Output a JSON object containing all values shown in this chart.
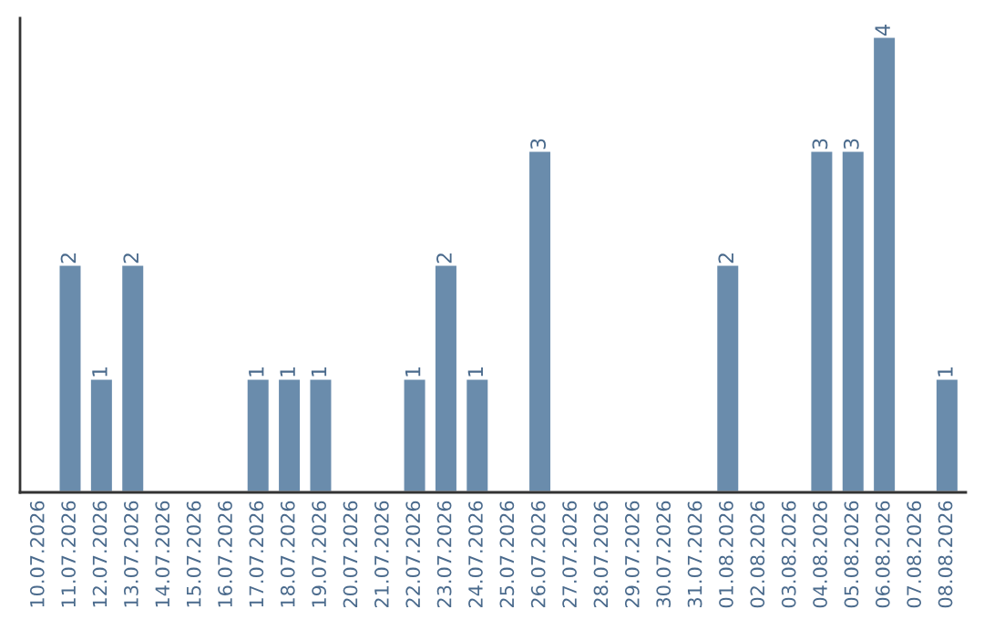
{
  "chart_data": {
    "type": "bar",
    "categories": [
      "10.07.2026",
      "11.07.2026",
      "12.07.2026",
      "13.07.2026",
      "14.07.2026",
      "15.07.2026",
      "16.07.2026",
      "17.07.2026",
      "18.07.2026",
      "19.07.2026",
      "20.07.2026",
      "21.07.2026",
      "22.07.2026",
      "23.07.2026",
      "24.07.2026",
      "25.07.2026",
      "26.07.2026",
      "27.07.2026",
      "28.07.2026",
      "29.07.2026",
      "30.07.2026",
      "31.07.2026",
      "01.08.2026",
      "02.08.2026",
      "03.08.2026",
      "04.08.2026",
      "05.08.2026",
      "06.08.2026",
      "07.08.2026",
      "08.08.2026"
    ],
    "values": [
      0,
      2,
      1,
      2,
      0,
      0,
      0,
      1,
      1,
      1,
      0,
      0,
      1,
      2,
      1,
      0,
      3,
      0,
      0,
      0,
      0,
      0,
      2,
      0,
      0,
      3,
      3,
      4,
      0,
      1
    ],
    "value_labels": [
      null,
      "2",
      "1",
      "2",
      null,
      null,
      null,
      "1",
      "1",
      "1",
      null,
      null,
      "1",
      "2",
      "1",
      null,
      "3",
      null,
      null,
      null,
      null,
      null,
      "2",
      null,
      null,
      "3",
      "3",
      "4",
      null,
      "1"
    ],
    "color": "#6a8cac",
    "grid": false,
    "legend": false
  }
}
